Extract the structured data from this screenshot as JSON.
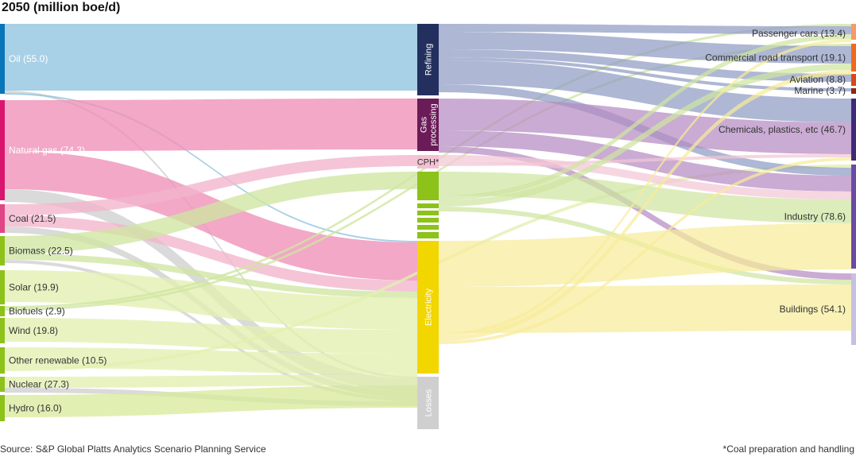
{
  "title": "2050 (million boe/d)",
  "source": "Source: S&P Global Platts Analytics Scenario Planning Service",
  "footnote": "*Coal preparation and handling",
  "chart_data": {
    "type": "sankey",
    "units": "million boe/d",
    "sources": [
      {
        "id": "oil",
        "label": "Oil (55.0)",
        "value": 55.0,
        "color": "#0a75b8",
        "flow_color": "#8fc3df"
      },
      {
        "id": "gas",
        "label": "Natural gas (74.3)",
        "value": 74.3,
        "color": "#d9156f",
        "flow_color": "#ee8fb6"
      },
      {
        "id": "coal",
        "label": "Coal (21.5)",
        "value": 21.5,
        "color": "#e04585",
        "flow_color": "#f2b5cc"
      },
      {
        "id": "biomass",
        "label": "Biomass (22.5)",
        "value": 22.5,
        "color": "#8cc21a",
        "flow_color": "#cfe5a1"
      },
      {
        "id": "solar",
        "label": "Solar (19.9)",
        "value": 19.9,
        "color": "#8cc21a",
        "flow_color": "#e3efb0"
      },
      {
        "id": "biofuels",
        "label": "Biofuels (2.9)",
        "value": 2.9,
        "color": "#8cc21a",
        "flow_color": "#cfe5a1"
      },
      {
        "id": "wind",
        "label": "Wind (19.8)",
        "value": 19.8,
        "color": "#8cc21a",
        "flow_color": "#e3efb0"
      },
      {
        "id": "other",
        "label": "Other renewable (10.5)",
        "value": 10.5,
        "color": "#8cc21a",
        "flow_color": "#e3efb0"
      },
      {
        "id": "nuclear",
        "label": "Nuclear (27.3)",
        "value": 27.3,
        "color": "#8cc21a",
        "flow_color": "#e3efb0"
      },
      {
        "id": "hydro",
        "label": "Hydro (16.0)",
        "value": 16.0,
        "color": "#8cc21a",
        "flow_color": "#d8ea9e"
      }
    ],
    "middle": [
      {
        "id": "refining",
        "label": "Refining",
        "color": "#23305e"
      },
      {
        "id": "gasproc",
        "label": "Gas processing",
        "label_lines": [
          "Gas",
          "processing"
        ],
        "color": "#6b1b58"
      },
      {
        "id": "cph",
        "label": "CPH*",
        "color": "#f4c1d3"
      },
      {
        "id": "bio",
        "label": "",
        "color": "#8cc21a"
      },
      {
        "id": "electricity",
        "label": "Electricity",
        "color": "#f2d600"
      },
      {
        "id": "losses",
        "label": "Losses",
        "color": "#cfcfcf"
      }
    ],
    "targets": [
      {
        "id": "pcars",
        "label": "Passenger cars (13.4)",
        "value": 13.4,
        "color": "#f59a6a"
      },
      {
        "id": "crt",
        "label": "Commercial road transport (19.1)",
        "value": 19.1,
        "color": "#f06a1e"
      },
      {
        "id": "aviation",
        "label": "Aviation (8.8)",
        "value": 8.8,
        "color": "#d9481c"
      },
      {
        "id": "marine",
        "label": "Marine (3.7)",
        "value": 3.7,
        "color": "#8a2a14"
      },
      {
        "id": "chem",
        "label": "Chemicals, plastics, etc (46.7)",
        "value": 46.7,
        "color": "#3f2a78"
      },
      {
        "id": "industry",
        "label": "Industry (78.6)",
        "value": 78.6,
        "color": "#6a4ba3"
      },
      {
        "id": "buildings",
        "label": "Buildings (54.1)",
        "value": 54.1,
        "color": "#c6c0e2"
      }
    ]
  }
}
